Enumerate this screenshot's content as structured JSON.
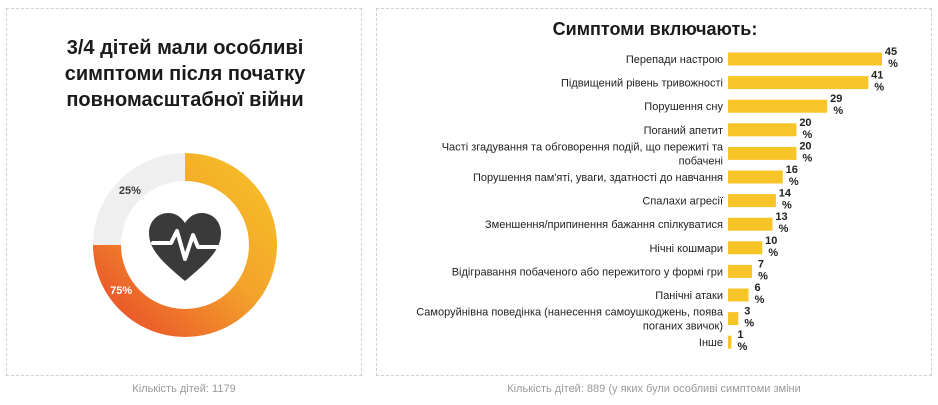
{
  "left": {
    "title_lines": [
      "3/4 дітей мали особливі",
      "симптоми після початку",
      "повномасштабної війни"
    ],
    "footnote": "Кількість дітей: 1179",
    "icon": "heart-pulse-icon"
  },
  "right": {
    "footnote": "Кількість дітей: 889 (у яких були особливі симптоми зміни"
  },
  "colors": {
    "yellow": "#f7c528",
    "orange_start": "#f3a32a",
    "red": "#e8402a",
    "grey_ring": "#efefef",
    "bar": "#f7c528",
    "icon_dark": "#3a3a3a"
  },
  "chart_data": [
    {
      "type": "pie",
      "title": "",
      "slices": [
        {
          "label": "75%",
          "value": 75
        },
        {
          "label": "25%",
          "value": 25
        }
      ]
    },
    {
      "type": "bar",
      "orientation": "horizontal",
      "title": "Симптоми включають:",
      "xlim": [
        0,
        45
      ],
      "categories": [
        [
          "Перепади настрою"
        ],
        [
          "Підвищений рівень  тривожності"
        ],
        [
          "Порушення сну"
        ],
        [
          "Поганий апетит"
        ],
        [
          "Часті згадування та обговорення подій, що пережиті та",
          "побачені"
        ],
        [
          "Порушення пам'яті, уваги, здатності до навчання"
        ],
        [
          "Спалахи агресії"
        ],
        [
          "Зменшення/припинення бажання спілкуватися"
        ],
        [
          "Нічні кошмари"
        ],
        [
          "Відігравання побаченого або пережитого у формі гри"
        ],
        [
          "Панічні атаки"
        ],
        [
          "Саморуйнівна поведінка (нанесення самоушкоджень, поява",
          "поганих звичок)"
        ],
        [
          "Інше"
        ]
      ],
      "values": [
        45,
        41,
        29,
        20,
        20,
        16,
        14,
        13,
        10,
        7,
        6,
        3,
        1
      ],
      "value_suffix": "%"
    }
  ]
}
